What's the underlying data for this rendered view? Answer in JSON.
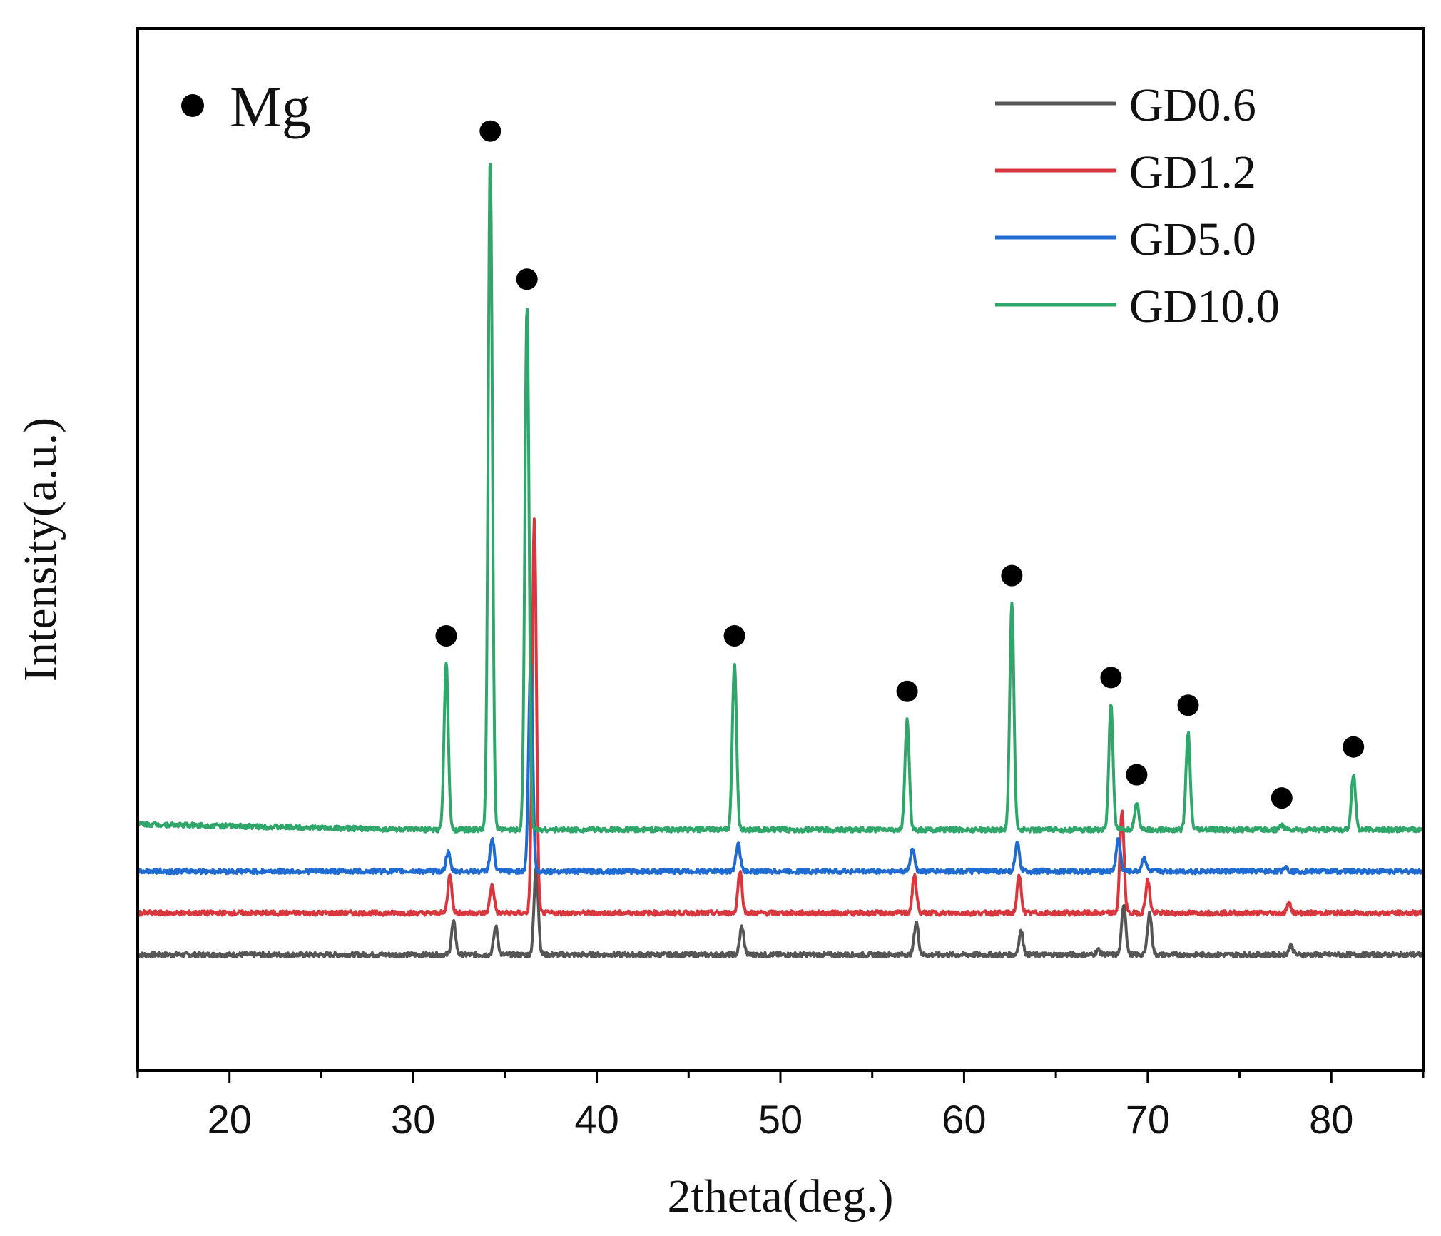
{
  "chart_data": {
    "type": "line",
    "title": "",
    "xlabel": "2theta(deg.)",
    "ylabel": "Intensity(a.u.)",
    "xlim": [
      15,
      85
    ],
    "ylim": [
      -0.25,
      2.0
    ],
    "xticks": [
      20,
      30,
      40,
      50,
      60,
      70,
      80
    ],
    "xtick_labels": [
      "20",
      "30",
      "40",
      "50",
      "60",
      "70",
      "80"
    ],
    "yticks_shown": false,
    "legend_position": "top-right",
    "marker_legend": {
      "symbol": "●",
      "label": "Mg",
      "position": "top-left"
    },
    "peak_markers_2theta": [
      31.8,
      34.2,
      36.2,
      47.5,
      56.9,
      62.6,
      68.0,
      69.4,
      72.2,
      77.3,
      81.2
    ],
    "series": [
      {
        "name": "GD0.6",
        "color": "#555555",
        "baseline": 0.0,
        "peaks": [
          [
            32.2,
            0.07
          ],
          [
            34.5,
            0.06
          ],
          [
            36.7,
            0.19
          ],
          [
            47.9,
            0.06
          ],
          [
            57.4,
            0.07
          ],
          [
            63.1,
            0.05
          ],
          [
            67.3,
            0.01
          ],
          [
            68.7,
            0.11
          ],
          [
            70.1,
            0.09
          ],
          [
            77.8,
            0.02
          ]
        ]
      },
      {
        "name": "GD1.2",
        "color": "#d9363e",
        "baseline": 0.09,
        "peaks": [
          [
            32.0,
            0.08
          ],
          [
            34.3,
            0.06
          ],
          [
            36.6,
            0.85
          ],
          [
            47.8,
            0.09
          ],
          [
            57.3,
            0.08
          ],
          [
            63.0,
            0.08
          ],
          [
            68.6,
            0.22
          ],
          [
            70.0,
            0.07
          ],
          [
            77.7,
            0.02
          ]
        ]
      },
      {
        "name": "GD5.0",
        "color": "#1f6bd1",
        "baseline": 0.18,
        "peaks": [
          [
            31.9,
            0.04
          ],
          [
            34.3,
            0.07
          ],
          [
            36.4,
            0.45
          ],
          [
            47.7,
            0.06
          ],
          [
            57.2,
            0.05
          ],
          [
            62.9,
            0.06
          ],
          [
            68.4,
            0.07
          ],
          [
            69.8,
            0.03
          ],
          [
            77.5,
            0.01
          ]
        ]
      },
      {
        "name": "GD10.0",
        "color": "#2fa66a",
        "baseline": 0.27,
        "peaks": [
          [
            31.8,
            0.36
          ],
          [
            34.2,
            1.45
          ],
          [
            36.2,
            1.13
          ],
          [
            47.5,
            0.36
          ],
          [
            56.9,
            0.24
          ],
          [
            62.6,
            0.49
          ],
          [
            68.0,
            0.27
          ],
          [
            69.4,
            0.06
          ],
          [
            72.2,
            0.21
          ],
          [
            77.3,
            0.01
          ],
          [
            81.2,
            0.12
          ]
        ]
      }
    ]
  }
}
